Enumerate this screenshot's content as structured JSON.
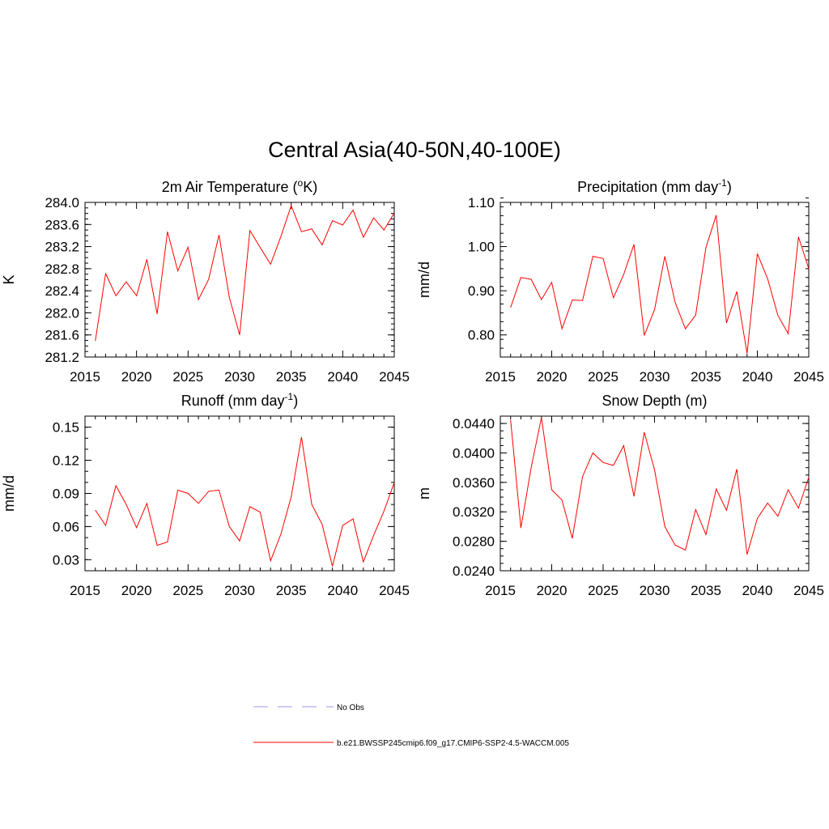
{
  "figure": {
    "title": "Central Asia(40-50N,40-100E)"
  },
  "legend": {
    "items": [
      {
        "label": "No Obs",
        "color": "#9999ee",
        "style": "dashed"
      },
      {
        "label": "b.e21.BWSSP245cmip6.f09_g17.CMIP6-SSP2-4.5-WACCM.005",
        "color": "#ff0000",
        "style": "solid"
      }
    ]
  },
  "chart_data": [
    {
      "type": "line",
      "title": "2m Air Temperature (°K)",
      "title_main": "2m Air Temperature (",
      "title_sup": "o",
      "title_after": "K)",
      "ylabel": "K",
      "xlim": [
        2015,
        2045
      ],
      "ylim": [
        281.2,
        284.0
      ],
      "xticks": [
        2015,
        2020,
        2025,
        2030,
        2035,
        2040,
        2045
      ],
      "yticks": [
        "284.0",
        "283.6",
        "283.2",
        "282.8",
        "282.4",
        "282.0",
        "281.6",
        "281.2"
      ],
      "yminor": 0.1,
      "series": [
        {
          "name": "b.e21.BWSSP245cmip6.f09_g17.CMIP6-SSP2-4.5-WACCM.005",
          "color": "#ff0000",
          "x": [
            2016,
            2017,
            2018,
            2019,
            2020,
            2021,
            2022,
            2023,
            2024,
            2025,
            2026,
            2027,
            2028,
            2029,
            2030,
            2031,
            2032,
            2033,
            2034,
            2035,
            2036,
            2037,
            2038,
            2039,
            2040,
            2041,
            2042,
            2043,
            2044,
            2045
          ],
          "values": [
            281.49,
            282.71,
            282.31,
            282.56,
            282.31,
            282.97,
            281.98,
            283.47,
            282.76,
            283.19,
            282.24,
            282.61,
            283.41,
            282.28,
            281.6,
            283.49,
            283.18,
            282.88,
            283.38,
            283.94,
            283.47,
            283.52,
            283.23,
            283.67,
            283.59,
            283.86,
            283.37,
            283.72,
            283.5,
            283.81
          ]
        }
      ]
    },
    {
      "type": "line",
      "title": "Precipitation (mm day-1)",
      "title_main": "Precipitation (mm day",
      "title_sup": "-1",
      "title_after": ")",
      "ylabel": "mm/d",
      "xlim": [
        2015,
        2045
      ],
      "ylim": [
        0.75,
        1.1
      ],
      "xticks": [
        2015,
        2020,
        2025,
        2030,
        2035,
        2040,
        2045
      ],
      "yticks": [
        "1.10",
        "1.00",
        "0.90",
        "0.80"
      ],
      "yminor": 0.02,
      "series": [
        {
          "name": "b.e21.BWSSP245cmip6.f09_g17.CMIP6-SSP2-4.5-WACCM.005",
          "color": "#ff0000",
          "x": [
            2016,
            2017,
            2018,
            2019,
            2020,
            2021,
            2022,
            2023,
            2024,
            2025,
            2026,
            2027,
            2028,
            2029,
            2030,
            2031,
            2032,
            2033,
            2034,
            2035,
            2036,
            2037,
            2038,
            2039,
            2040,
            2041,
            2042,
            2043,
            2044,
            2045
          ],
          "values": [
            0.862,
            0.93,
            0.926,
            0.88,
            0.919,
            0.814,
            0.879,
            0.878,
            0.978,
            0.973,
            0.884,
            0.937,
            1.005,
            0.799,
            0.857,
            0.978,
            0.874,
            0.814,
            0.845,
            0.998,
            1.071,
            0.827,
            0.898,
            0.758,
            0.984,
            0.927,
            0.844,
            0.803,
            1.022,
            0.95
          ]
        }
      ]
    },
    {
      "type": "line",
      "title": "Runoff (mm day-1)",
      "title_main": "Runoff (mm day",
      "title_sup": "-1",
      "title_after": ")",
      "ylabel": "mm/d",
      "xlim": [
        2015,
        2045
      ],
      "ylim": [
        0.02,
        0.16
      ],
      "xticks": [
        2015,
        2020,
        2025,
        2030,
        2035,
        2040,
        2045
      ],
      "yticks": [
        "0.15",
        "0.12",
        "0.09",
        "0.06",
        "0.03"
      ],
      "ytickvals": [
        0.15,
        0.12,
        0.09,
        0.06,
        0.03
      ],
      "yminor": 0.01,
      "series": [
        {
          "name": "b.e21.BWSSP245cmip6.f09_g17.CMIP6-SSP2-4.5-WACCM.005",
          "color": "#ff0000",
          "x": [
            2016,
            2017,
            2018,
            2019,
            2020,
            2021,
            2022,
            2023,
            2024,
            2025,
            2026,
            2027,
            2028,
            2029,
            2030,
            2031,
            2032,
            2033,
            2034,
            2035,
            2036,
            2037,
            2038,
            2039,
            2040,
            2041,
            2042,
            2043,
            2044,
            2045
          ],
          "values": [
            0.075,
            0.061,
            0.097,
            0.08,
            0.059,
            0.081,
            0.043,
            0.046,
            0.093,
            0.09,
            0.081,
            0.092,
            0.093,
            0.06,
            0.047,
            0.078,
            0.073,
            0.029,
            0.053,
            0.087,
            0.141,
            0.08,
            0.062,
            0.024,
            0.061,
            0.067,
            0.028,
            0.052,
            0.074,
            0.1
          ]
        }
      ]
    },
    {
      "type": "line",
      "title": "Snow Depth (m)",
      "title_main": "Snow Depth (m)",
      "title_sup": "",
      "title_after": "",
      "ylabel": "m",
      "xlim": [
        2015,
        2045
      ],
      "ylim": [
        0.024,
        0.045
      ],
      "xticks": [
        2015,
        2020,
        2025,
        2030,
        2035,
        2040,
        2045
      ],
      "yticks": [
        "0.0440",
        "0.0400",
        "0.0360",
        "0.0320",
        "0.0280",
        "0.0240"
      ],
      "yminor": 0.001,
      "series": [
        {
          "name": "b.e21.BWSSP245cmip6.f09_g17.CMIP6-SSP2-4.5-WACCM.005",
          "color": "#ff0000",
          "x": [
            2016,
            2017,
            2018,
            2019,
            2020,
            2021,
            2022,
            2023,
            2024,
            2025,
            2026,
            2027,
            2028,
            2029,
            2030,
            2031,
            2032,
            2033,
            2034,
            2035,
            2036,
            2037,
            2038,
            2039,
            2040,
            2041,
            2042,
            2043,
            2044,
            2045
          ],
          "values": [
            0.0445,
            0.0298,
            0.038,
            0.0448,
            0.035,
            0.0336,
            0.0284,
            0.0368,
            0.04,
            0.0387,
            0.0383,
            0.041,
            0.0341,
            0.0428,
            0.0377,
            0.03,
            0.0275,
            0.0268,
            0.0323,
            0.0289,
            0.0351,
            0.0322,
            0.0378,
            0.0262,
            0.0311,
            0.0332,
            0.0314,
            0.035,
            0.0325,
            0.0367
          ]
        }
      ]
    }
  ]
}
